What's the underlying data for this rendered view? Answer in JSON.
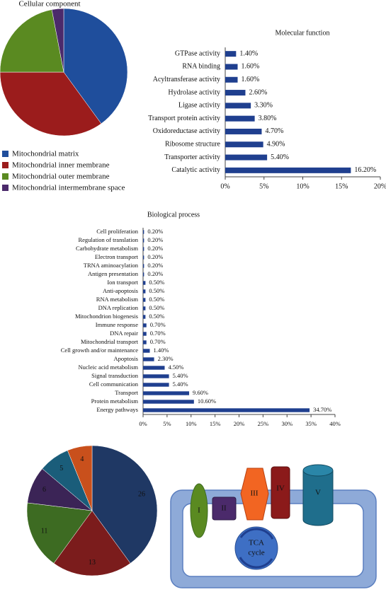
{
  "chart_data": [
    {
      "type": "pie",
      "title": "Cellular component",
      "categories": [
        "Mitochondrial matrix",
        "Mitochondrial inner membrane",
        "Mitochondrial outer membrane",
        "Mitochondrial intermembrane space"
      ],
      "values": [
        40,
        35,
        22,
        3
      ],
      "colors": [
        "#1f4e9c",
        "#9b1c1c",
        "#5a8a21",
        "#4b2a6b"
      ],
      "legend": "bottom-left"
    },
    {
      "type": "barh",
      "title": "Molecular function",
      "categories": [
        "GTPase activity",
        "RNA binding",
        "Acyltransferase activity",
        "Hydrolase activity",
        "Ligase activity",
        "Transport protein activity",
        "Oxidoreductase activity",
        "Ribosome structure",
        "Transporter activity",
        "Catalytic activity"
      ],
      "values": [
        1.4,
        1.6,
        1.6,
        2.6,
        3.3,
        3.8,
        4.7,
        4.9,
        5.4,
        16.2
      ],
      "value_labels": [
        "1.40%",
        "1.60%",
        "1.60%",
        "2.60%",
        "3.30%",
        "3.80%",
        "4.70%",
        "4.90%",
        "5.40%",
        "16.20%"
      ],
      "color": "#1f3f8f",
      "xlim": [
        0,
        20
      ],
      "xticks": [
        {
          "value": 0,
          "label": "0%"
        },
        {
          "value": 5,
          "label": "5%"
        },
        {
          "value": 10,
          "label": "10%"
        },
        {
          "value": 15,
          "label": "15%"
        },
        {
          "value": 20,
          "label": "20%"
        }
      ]
    },
    {
      "type": "barh",
      "title": "Biological process",
      "categories": [
        "Cell proliferation",
        "Regulation of translation",
        "Carbohydrate metabolism",
        "Electron transport",
        "TRNA aminoacylation",
        "Antigen presentation",
        "Ion transport",
        "Anti-apoptosis",
        "RNA metabolism",
        "DNA replication",
        "Mitochondrion biogenesis",
        "Immune response",
        "DNA repair",
        "Mitochondrial transport",
        "Cell growth and/or maintenance",
        "Apoptosis",
        "Nucleic acid metabolism",
        "Signal transduction",
        "Cell communication",
        "Transport",
        "Protein metabolism",
        "Energy pathways"
      ],
      "values": [
        0.2,
        0.2,
        0.2,
        0.2,
        0.2,
        0.2,
        0.5,
        0.5,
        0.5,
        0.5,
        0.5,
        0.7,
        0.7,
        0.7,
        1.4,
        2.3,
        4.5,
        5.4,
        5.4,
        9.6,
        10.6,
        34.7
      ],
      "value_labels": [
        "0.20%",
        "0.20%",
        "0.20%",
        "0.20%",
        "0.20%",
        "0.20%",
        "0.50%",
        "0.50%",
        "0.50%",
        "0.50%",
        "0.50%",
        "0.70%",
        "0.70%",
        "0.70%",
        "1.40%",
        "2.30%",
        "4.50%",
        "5.40%",
        "5.40%",
        "9.60%",
        "10.60%",
        "34.70%"
      ],
      "color": "#1f3f8f",
      "xlim": [
        0,
        40
      ],
      "xticks": [
        {
          "value": 0,
          "label": "0%"
        },
        {
          "value": 5,
          "label": "5%"
        },
        {
          "value": 10,
          "label": "10%"
        },
        {
          "value": 15,
          "label": "15%"
        },
        {
          "value": 20,
          "label": "20%"
        },
        {
          "value": 25,
          "label": "25%"
        },
        {
          "value": 30,
          "label": "30%"
        },
        {
          "value": 35,
          "label": "35%"
        },
        {
          "value": 40,
          "label": "40%"
        }
      ]
    },
    {
      "type": "pie",
      "values": [
        26,
        13,
        11,
        6,
        5,
        4
      ],
      "colors": [
        "#1f3864",
        "#7b1c1c",
        "#3d6b22",
        "#3b2456",
        "#1a5d7a",
        "#c9501c"
      ]
    }
  ],
  "diagram": {
    "complexes": [
      "I",
      "II",
      "III",
      "IV",
      "V"
    ],
    "tca": [
      "TCA",
      "cycle"
    ]
  }
}
